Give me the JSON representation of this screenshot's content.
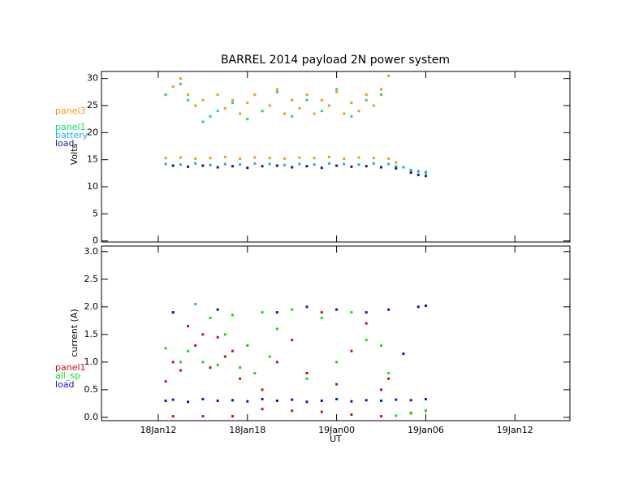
{
  "chart_data": [
    {
      "type": "scatter",
      "title": "BARREL 2014 payload 2N power system",
      "ylabel": "Volts",
      "legend": "left",
      "xlim": [
        8.18,
        39.7
      ],
      "ylim": [
        -0.2,
        31.3
      ],
      "yticks": [
        0,
        5,
        10,
        15,
        20,
        25,
        30
      ],
      "series": [
        {
          "name": "panel3",
          "color": "#f09a10",
          "x": [
            12.5,
            13,
            13.5,
            14,
            14.5,
            15,
            15.5,
            16,
            16.5,
            17,
            17.5,
            18,
            18.5,
            19,
            19.5,
            20,
            20.5,
            21,
            21.5,
            22,
            22.5,
            23,
            23.5,
            24,
            24.5,
            25,
            25.5,
            26,
            26.5,
            27,
            27.5,
            12.5,
            13.5,
            14.5,
            15.5,
            16.5,
            17.5,
            18.5,
            19.5,
            20.5,
            21.5,
            22.5,
            23.5,
            24.5,
            25.5,
            26.5,
            27.5,
            28,
            28.5,
            29,
            29.5,
            30
          ],
          "values": [
            27,
            28.5,
            30,
            27,
            25,
            26,
            23,
            27,
            24.5,
            26,
            23.5,
            25.5,
            27,
            24,
            25,
            28,
            23.5,
            26,
            24.5,
            27,
            23.5,
            26,
            25,
            27.5,
            23.5,
            25.5,
            24,
            27,
            25,
            28,
            30.5,
            15.3,
            15.4,
            15.2,
            15.3,
            15.5,
            15.2,
            15.4,
            15.3,
            15.2,
            15.4,
            15.3,
            15.5,
            15.2,
            15.4,
            15.3,
            15.2,
            14.5,
            13.6,
            13.1,
            12.9,
            12.8
          ]
        },
        {
          "name": "panel1",
          "color": "#10e070",
          "x": [
            12.5,
            13.5,
            14,
            15,
            15.5,
            16,
            17,
            18,
            19,
            20,
            21,
            22,
            23,
            24,
            25,
            26,
            27,
            28,
            29,
            30
          ],
          "values": [
            27,
            29,
            26,
            22,
            23,
            24,
            25.5,
            22.5,
            24,
            27.5,
            23,
            26,
            24,
            28,
            23,
            26,
            27,
            13.8,
            13,
            12.7
          ]
        },
        {
          "name": "battery",
          "color": "#20a8f0",
          "x": [
            12.5,
            13.5,
            14.5,
            15.5,
            16.5,
            17.5,
            18.5,
            19.5,
            20.5,
            21.5,
            22.5,
            23.5,
            24.5,
            25.5,
            26.5,
            27.5,
            28.5,
            29,
            29.5,
            30
          ],
          "values": [
            14.2,
            14.1,
            14.3,
            14.0,
            14.2,
            14.1,
            14.3,
            14.2,
            14.0,
            14.2,
            14.1,
            14.3,
            14.2,
            14.1,
            14.3,
            14.2,
            13.6,
            13.1,
            12.8,
            12.6
          ]
        },
        {
          "name": "load",
          "color": "#1818a0",
          "x": [
            13,
            14,
            15,
            16,
            17,
            18,
            19,
            20,
            21,
            22,
            23,
            24,
            25,
            26,
            27,
            28,
            29,
            29.5,
            30
          ],
          "values": [
            13.9,
            13.7,
            13.9,
            13.6,
            13.8,
            13.5,
            13.8,
            13.9,
            13.6,
            13.8,
            13.5,
            13.9,
            13.7,
            13.8,
            13.6,
            13.4,
            12.6,
            12.2,
            12.0
          ]
        }
      ]
    },
    {
      "type": "scatter",
      "ylabel": "current (A)",
      "xlabel": "UT",
      "legend": "left",
      "xlim": [
        8.18,
        39.7
      ],
      "ylim": [
        -0.06,
        3.1
      ],
      "xticks": [
        {
          "value": 12,
          "label": "18Jan12"
        },
        {
          "value": 18,
          "label": "18Jan18"
        },
        {
          "value": 24,
          "label": "19Jan00"
        },
        {
          "value": 30,
          "label": "19Jan06"
        },
        {
          "value": 36,
          "label": "19Jan12"
        }
      ],
      "yticks": [
        {
          "value": 0,
          "label": "0.0"
        },
        0.5,
        {
          "value": 1,
          "label": "1.0"
        },
        1.5,
        {
          "value": 2,
          "label": "2.0"
        },
        2.5,
        {
          "value": 3,
          "label": "3.0"
        }
      ],
      "series": [
        {
          "name": "panel1",
          "color": "#d01010",
          "x": [
            12.5,
            13,
            13.5,
            14,
            14.5,
            15,
            15.5,
            16,
            16.5,
            17,
            17.5,
            18,
            19,
            20,
            21,
            22,
            23,
            24,
            25,
            26,
            27,
            27.5,
            13,
            15,
            17,
            19,
            21,
            23,
            25,
            27,
            29,
            30
          ],
          "values": [
            0.65,
            1.0,
            0.85,
            1.65,
            1.3,
            1.5,
            0.9,
            1.45,
            1.1,
            1.2,
            0.7,
            1.3,
            0.5,
            1.0,
            1.4,
            0.8,
            1.9,
            0.6,
            1.2,
            1.7,
            0.5,
            0.7,
            0.02,
            0.02,
            0.02,
            0.15,
            0.12,
            0.1,
            0.05,
            0.02,
            0.08,
            0.12
          ]
        },
        {
          "name": "all_sp",
          "color": "#10e010",
          "x": [
            12.5,
            13,
            13.5,
            14,
            14.5,
            15,
            15.5,
            16,
            16.5,
            17,
            17.5,
            18,
            18.5,
            19,
            19.5,
            20,
            21,
            22,
            23,
            24,
            25,
            26,
            27,
            27.5,
            28,
            29,
            30
          ],
          "values": [
            1.25,
            1.9,
            1.0,
            1.2,
            2.05,
            1.0,
            1.8,
            0.95,
            1.5,
            1.85,
            0.9,
            1.3,
            0.8,
            1.9,
            1.1,
            1.6,
            1.95,
            0.7,
            1.8,
            1.0,
            1.9,
            1.4,
            1.3,
            0.8,
            0.03,
            0.07,
            0.12
          ]
        },
        {
          "name": "load",
          "color": "#1010e0",
          "x": [
            12.5,
            13,
            14,
            15,
            16,
            17,
            18,
            19,
            20,
            21,
            22,
            23,
            24,
            25,
            26,
            27,
            28,
            29,
            30,
            13,
            16,
            20,
            22,
            24,
            26,
            27.5,
            29.5,
            30,
            28.5
          ],
          "values": [
            0.3,
            0.32,
            0.28,
            0.33,
            0.3,
            0.31,
            0.29,
            0.33,
            0.3,
            0.32,
            0.28,
            0.3,
            0.33,
            0.29,
            0.31,
            0.3,
            0.32,
            0.31,
            0.33,
            1.9,
            1.95,
            1.9,
            2.0,
            1.95,
            1.9,
            1.95,
            2.0,
            2.02,
            1.15
          ]
        }
      ]
    }
  ]
}
